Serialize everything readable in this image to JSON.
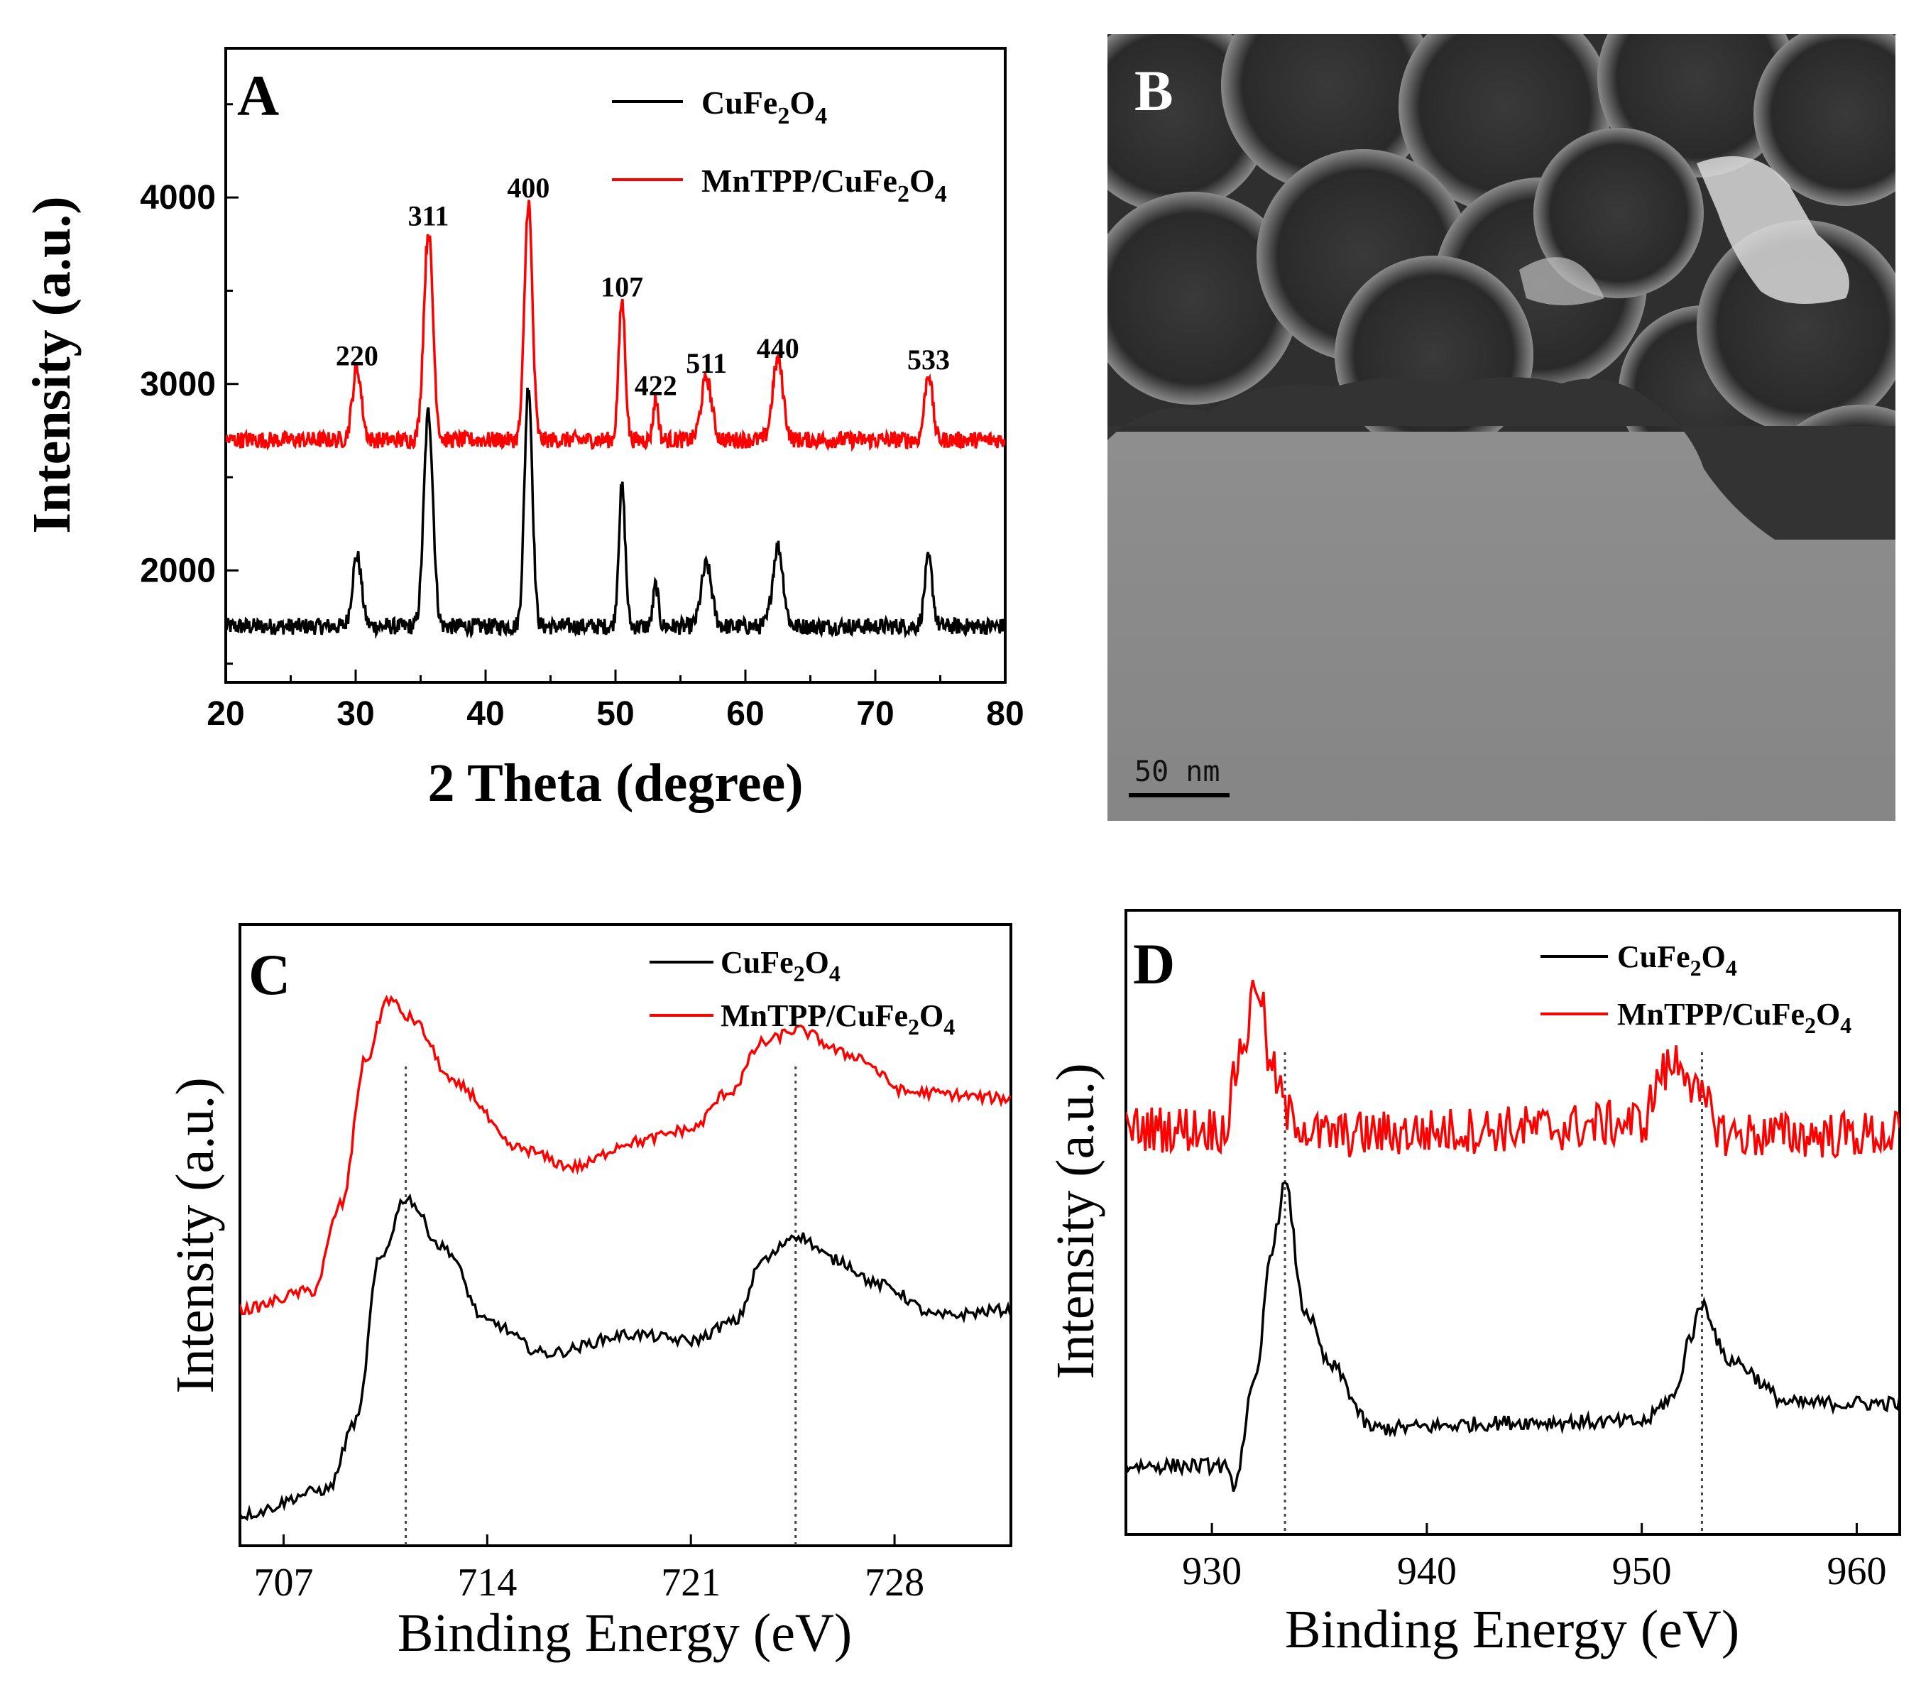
{
  "chart_data": [
    {
      "panel": "A",
      "type": "line",
      "xlabel": "2 Theta (degree)",
      "ylabel": "Intensity (a.u.)",
      "xlim": [
        20,
        80
      ],
      "ylim": [
        1400,
        4800
      ],
      "xticks": [
        20,
        30,
        40,
        50,
        60,
        70,
        80
      ],
      "yticks": [
        2000,
        3000,
        4000
      ],
      "legend_position": "top-right",
      "series": [
        {
          "name": "CuFe2O4",
          "color": "#000000",
          "baseline": 1700,
          "peaks": [
            [
              30.1,
              380,
              0.35
            ],
            [
              35.6,
              1150,
              0.35
            ],
            [
              43.3,
              1300,
              0.3
            ],
            [
              50.5,
              750,
              0.25
            ],
            [
              53.1,
              220,
              0.2
            ],
            [
              57.0,
              330,
              0.4
            ],
            [
              62.5,
              430,
              0.4
            ],
            [
              74.1,
              360,
              0.3
            ]
          ]
        },
        {
          "name": "MnTPP/CuFe2O4",
          "color": "#ff0000",
          "baseline": 2700,
          "peaks": [
            [
              30.1,
              380,
              0.35
            ],
            [
              35.6,
              1120,
              0.35
            ],
            [
              43.3,
              1280,
              0.3
            ],
            [
              50.5,
              750,
              0.25
            ],
            [
              53.1,
              220,
              0.2
            ],
            [
              57.0,
              330,
              0.4
            ],
            [
              62.5,
              430,
              0.4
            ],
            [
              74.1,
              360,
              0.3
            ]
          ]
        }
      ],
      "peak_labels": [
        {
          "label": "220",
          "x": 30.1,
          "y": 3100
        },
        {
          "label": "311",
          "x": 35.6,
          "y": 3850
        },
        {
          "label": "400",
          "x": 43.3,
          "y": 4000
        },
        {
          "label": "107",
          "x": 50.5,
          "y": 3470
        },
        {
          "label": "422",
          "x": 53.1,
          "y": 2940
        },
        {
          "label": "511",
          "x": 57.0,
          "y": 3060
        },
        {
          "label": "440",
          "x": 62.5,
          "y": 3140
        },
        {
          "label": "533",
          "x": 74.1,
          "y": 3080
        }
      ]
    },
    {
      "panel": "C",
      "type": "line",
      "xlabel": "Binding Energy (eV)",
      "ylabel": "Intensity (a.u.)",
      "xlim": [
        705.5,
        732
      ],
      "ylim": [
        0,
        10
      ],
      "xticks": [
        707,
        714,
        721,
        728
      ],
      "reference_lines": [
        711.2,
        724.6
      ],
      "legend_position": "top-right",
      "series": [
        {
          "name": "CuFe2O4",
          "color": "#000000",
          "points": [
            [
              705.5,
              0.5
            ],
            [
              708.5,
              0.9
            ],
            [
              709.5,
              2.0
            ],
            [
              710.3,
              4.6
            ],
            [
              711.2,
              5.6
            ],
            [
              712.5,
              4.8
            ],
            [
              714.0,
              3.6
            ],
            [
              716.0,
              3.1
            ],
            [
              719.0,
              3.4
            ],
            [
              721.0,
              3.3
            ],
            [
              722.5,
              3.6
            ],
            [
              723.5,
              4.6
            ],
            [
              724.6,
              5.0
            ],
            [
              726.0,
              4.6
            ],
            [
              727.5,
              4.2
            ],
            [
              729.5,
              3.7
            ],
            [
              732,
              3.8
            ]
          ]
        },
        {
          "name": "MnTPP/CuFe2O4",
          "color": "#ff0000",
          "points": [
            [
              705.5,
              3.8
            ],
            [
              708.0,
              4.1
            ],
            [
              709.0,
              5.5
            ],
            [
              709.8,
              7.8
            ],
            [
              710.6,
              8.8
            ],
            [
              711.3,
              8.5
            ],
            [
              713.0,
              7.4
            ],
            [
              715.0,
              6.4
            ],
            [
              717.0,
              6.1
            ],
            [
              719.0,
              6.5
            ],
            [
              721.0,
              6.7
            ],
            [
              722.3,
              7.3
            ],
            [
              723.5,
              8.1
            ],
            [
              724.6,
              8.3
            ],
            [
              726.5,
              7.9
            ],
            [
              728.5,
              7.3
            ],
            [
              732,
              7.2
            ]
          ]
        }
      ]
    },
    {
      "panel": "D",
      "type": "line",
      "xlabel": "Binding Energy (eV)",
      "ylabel": "Intensity (a.u.)",
      "xlim": [
        926,
        962
      ],
      "ylim": [
        0,
        10
      ],
      "xticks": [
        930,
        940,
        950,
        960
      ],
      "reference_lines": [
        933.4,
        952.8
      ],
      "legend_position": "top-right",
      "series": [
        {
          "name": "CuFe2O4",
          "color": "#000000",
          "points": [
            [
              926,
              1.1
            ],
            [
              930.5,
              1.1
            ],
            [
              931.0,
              0.8
            ],
            [
              932.0,
              2.4
            ],
            [
              932.8,
              4.6
            ],
            [
              933.4,
              5.6
            ],
            [
              934.3,
              3.6
            ],
            [
              935.5,
              2.7
            ],
            [
              937.5,
              1.7
            ],
            [
              945,
              1.8
            ],
            [
              950,
              1.8
            ],
            [
              951.5,
              2.2
            ],
            [
              952.3,
              3.2
            ],
            [
              952.8,
              3.7
            ],
            [
              954,
              2.8
            ],
            [
              957,
              2.1
            ],
            [
              962,
              2.1
            ]
          ]
        },
        {
          "name": "MnTPP/CuFe2O4",
          "color": "#ff0000",
          "points": [
            [
              926,
              6.5
            ],
            [
              930.5,
              6.5
            ],
            [
              931.5,
              7.9
            ],
            [
              932.1,
              8.9
            ],
            [
              932.8,
              7.4
            ],
            [
              933.6,
              6.7
            ],
            [
              935,
              6.4
            ],
            [
              945,
              6.5
            ],
            [
              950,
              6.6
            ],
            [
              951.0,
              7.4
            ],
            [
              951.8,
              7.6
            ],
            [
              952.8,
              6.9
            ],
            [
              954,
              6.4
            ],
            [
              962,
              6.4
            ]
          ]
        }
      ]
    }
  ],
  "legend": {
    "cufe2o4": {
      "base": "CuFe",
      "sub1": "2",
      "mid": "O",
      "sub2": "4"
    },
    "mntpp": {
      "base": "MnTPP/CuFe",
      "sub1": "2",
      "mid": "O",
      "sub2": "4"
    }
  },
  "panels": {
    "a_letter": "A",
    "b_letter": "B",
    "c_letter": "C",
    "d_letter": "D"
  },
  "tem_image": {
    "scale_bar_label": "50 nm"
  },
  "colors": {
    "black_series": "#000000",
    "red_series": "#ff0000"
  }
}
